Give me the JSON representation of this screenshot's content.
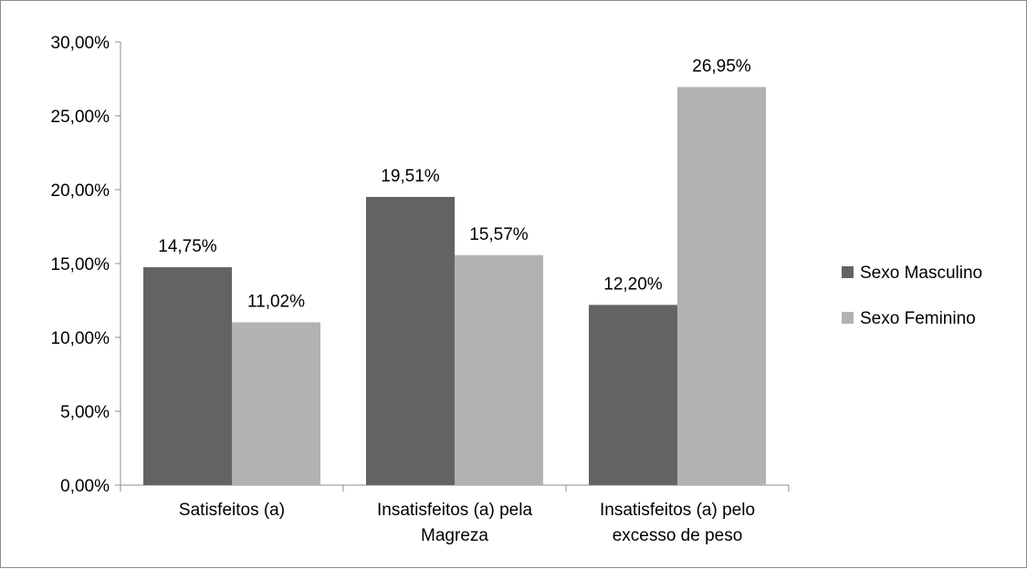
{
  "chart_data": {
    "type": "bar",
    "title": "",
    "xlabel": "",
    "ylabel": "",
    "categories": [
      [
        "Satisfeitos (a)"
      ],
      [
        "Insatisfeitos (a) pela",
        "Magreza"
      ],
      [
        "Insatisfeitos (a) pelo",
        "excesso de peso"
      ]
    ],
    "series": [
      {
        "name": "Sexo Masculino",
        "color": "#636363",
        "values": [
          14.75,
          19.51,
          12.2
        ],
        "labels": [
          "14,75%",
          "19,51%",
          "12,20%"
        ]
      },
      {
        "name": "Sexo Feminino",
        "color": "#b2b2b2",
        "values": [
          11.02,
          15.57,
          26.95
        ],
        "labels": [
          "11,02%",
          "15,57%",
          "26,95%"
        ]
      }
    ],
    "ylim": [
      0,
      30
    ],
    "yticks": [
      0,
      5,
      10,
      15,
      20,
      25,
      30
    ],
    "ytick_labels": [
      "0,00%",
      "5,00%",
      "10,00%",
      "15,00%",
      "20,00%",
      "25,00%",
      "30,00%"
    ],
    "grid": false,
    "legend": "right"
  }
}
